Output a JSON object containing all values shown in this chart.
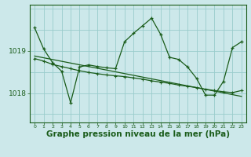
{
  "background_color": "#cce8ea",
  "plot_bg_color": "#cce8ea",
  "grid_color": "#99cccc",
  "line_color": "#1a5c1a",
  "xlabel": "Graphe pression niveau de la mer (hPa)",
  "xlabel_fontsize": 7.5,
  "ytick_positions": [
    1018,
    1019
  ],
  "ytick_labels": [
    "1018",
    "1019"
  ],
  "xlim": [
    -0.5,
    23.5
  ],
  "ylim": [
    1017.3,
    1020.1
  ],
  "xtick_labels": [
    "0",
    "1",
    "2",
    "3",
    "4",
    "5",
    "6",
    "7",
    "8",
    "9",
    "10",
    "11",
    "12",
    "13",
    "14",
    "15",
    "16",
    "17",
    "18",
    "19",
    "20",
    "21",
    "22",
    "23"
  ],
  "series1_x": [
    0,
    1,
    2,
    3,
    4,
    5,
    6,
    7,
    8,
    9,
    10,
    11,
    12,
    13,
    14,
    15,
    16,
    17,
    18,
    19,
    20,
    21,
    22,
    23
  ],
  "series1_y": [
    1019.55,
    1019.05,
    1018.72,
    1018.52,
    1017.77,
    1018.62,
    1018.67,
    1018.63,
    1018.6,
    1018.58,
    1019.22,
    1019.42,
    1019.6,
    1019.78,
    1019.4,
    1018.85,
    1018.8,
    1018.62,
    1018.35,
    1017.95,
    1017.95,
    1018.28,
    1019.08,
    1019.22
  ],
  "series2_x": [
    0,
    1,
    2,
    3,
    4,
    5,
    6,
    7,
    8,
    9,
    10,
    11,
    12,
    13,
    14,
    15,
    16,
    17,
    18,
    19,
    20,
    21,
    22,
    23
  ],
  "series2_y": [
    1018.82,
    1018.76,
    1018.68,
    1018.63,
    1018.58,
    1018.53,
    1018.49,
    1018.46,
    1018.43,
    1018.41,
    1018.39,
    1018.36,
    1018.33,
    1018.29,
    1018.26,
    1018.23,
    1018.19,
    1018.16,
    1018.13,
    1018.09,
    1018.06,
    1018.03,
    1018.01,
    1018.06
  ],
  "trend_x": [
    0,
    23
  ],
  "trend_y": [
    1018.88,
    1017.92
  ]
}
